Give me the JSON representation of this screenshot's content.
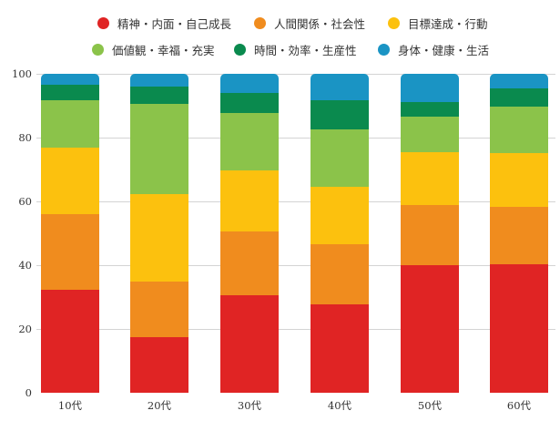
{
  "legend": {
    "items": [
      {
        "label": "精神・内面・自己成長",
        "color": "#e02424"
      },
      {
        "label": "人間関係・社会性",
        "color": "#f08c1e"
      },
      {
        "label": "目標達成・行動",
        "color": "#fcc10e"
      },
      {
        "label": "価値観・幸福・充実",
        "color": "#8bc34a"
      },
      {
        "label": "時間・効率・生産性",
        "color": "#0a8a4e"
      },
      {
        "label": "身体・健康・生活",
        "color": "#1a94c4"
      }
    ]
  },
  "axis": {
    "y_ticks": [
      "0",
      "20",
      "40",
      "60",
      "80",
      "100"
    ],
    "x_ticks": [
      "10代",
      "20代",
      "30代",
      "40代",
      "50代",
      "60代"
    ]
  },
  "chart_data": {
    "type": "bar",
    "stacked": true,
    "title": "",
    "xlabel": "",
    "ylabel": "",
    "ylim": [
      0,
      100
    ],
    "grid": true,
    "legend_position": "top",
    "categories": [
      "10代",
      "20代",
      "30代",
      "40代",
      "50代",
      "60代"
    ],
    "series": [
      {
        "name": "精神・内面・自己成長",
        "color": "#e02424",
        "values": [
          32.3,
          17.4,
          30.5,
          27.6,
          40.0,
          40.3
        ]
      },
      {
        "name": "人間関係・社会性",
        "color": "#f08c1e",
        "values": [
          23.6,
          17.4,
          20.0,
          18.9,
          18.9,
          17.9
        ]
      },
      {
        "name": "目標達成・行動",
        "color": "#fcc10e",
        "values": [
          20.9,
          27.4,
          19.1,
          18.1,
          16.5,
          16.9
        ]
      },
      {
        "name": "価値観・幸福・充実",
        "color": "#8bc34a",
        "values": [
          15.0,
          28.3,
          18.0,
          18.1,
          11.1,
          14.7
        ]
      },
      {
        "name": "時間・効率・生産性",
        "color": "#0a8a4e",
        "values": [
          4.7,
          5.4,
          6.3,
          8.9,
          4.6,
          5.5
        ]
      },
      {
        "name": "身体・健康・生活",
        "color": "#1a94c4",
        "values": [
          3.5,
          4.1,
          6.1,
          8.4,
          8.9,
          4.7
        ]
      }
    ]
  }
}
